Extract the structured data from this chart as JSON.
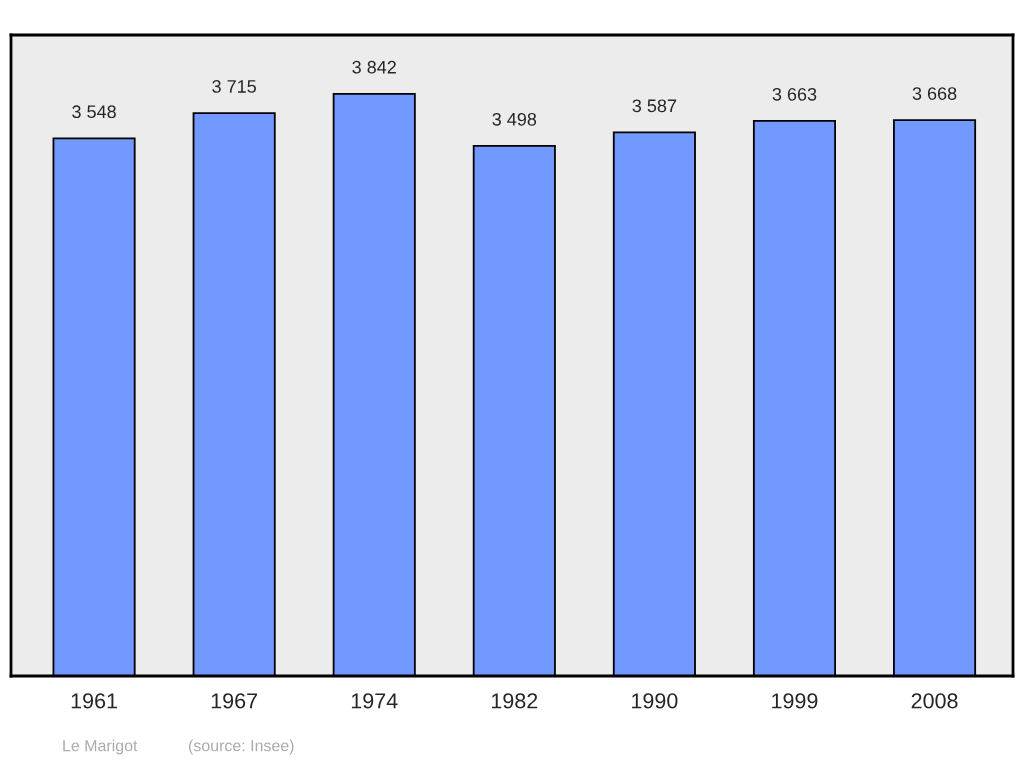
{
  "chart_data": {
    "type": "bar",
    "categories": [
      "1961",
      "1967",
      "1974",
      "1982",
      "1990",
      "1999",
      "2008"
    ],
    "values": [
      3548,
      3715,
      3842,
      3498,
      3587,
      3663,
      3668
    ],
    "value_labels": [
      "3 548",
      "3 715",
      "3 842",
      "3 498",
      "3 587",
      "3 663",
      "3 668"
    ],
    "color": "#7299ff",
    "ylim": [
      0,
      4230
    ],
    "tick_labels": "x",
    "grid": false,
    "annotations": [
      "Le Marigot",
      "(source: Insee)"
    ]
  }
}
